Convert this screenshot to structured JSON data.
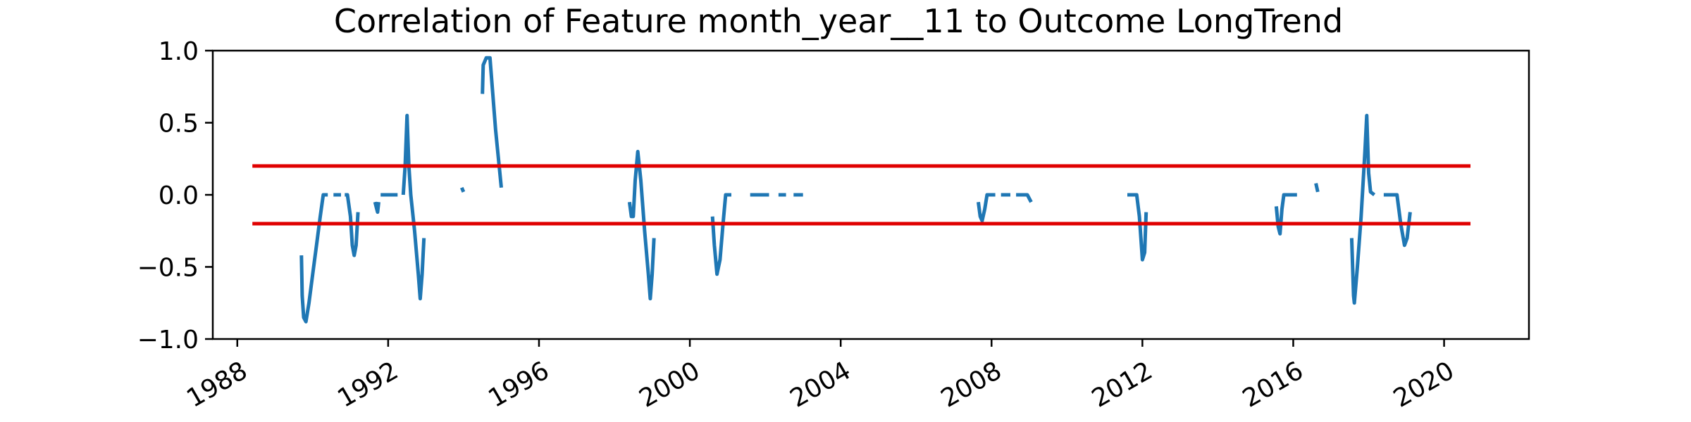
{
  "chart_data": {
    "type": "line",
    "title": "Correlation of Feature month_year__11 to Outcome LongTrend",
    "xlabel": "",
    "ylabel": "",
    "xlim": [
      1987.35,
      2022.25
    ],
    "ylim": [
      -1.0,
      1.0
    ],
    "x_ticks": [
      "1988",
      "1992",
      "1996",
      "2000",
      "2004",
      "2008",
      "2012",
      "2016",
      "2020"
    ],
    "y_ticks": [
      "1.0",
      "0.5",
      "0.0",
      "−0.5",
      "−1.0"
    ],
    "grid": false,
    "legend": "none",
    "series": [
      {
        "color": "#1f77b4",
        "segments": [
          [
            [
              1989.7,
              -0.42
            ],
            [
              1989.72,
              -0.7
            ],
            [
              1989.76,
              -0.85
            ],
            [
              1989.82,
              -0.88
            ],
            [
              1989.9,
              -0.75
            ],
            [
              1990.0,
              -0.55
            ],
            [
              1990.1,
              -0.35
            ],
            [
              1990.2,
              -0.15
            ],
            [
              1990.28,
              0.0
            ],
            [
              1990.4,
              0.0
            ]
          ],
          [
            [
              1990.55,
              0.0
            ],
            [
              1990.75,
              0.0
            ]
          ],
          [
            [
              1990.85,
              0.0
            ],
            [
              1990.92,
              0.0
            ],
            [
              1991.0,
              -0.15
            ],
            [
              1991.05,
              -0.35
            ],
            [
              1991.1,
              -0.42
            ],
            [
              1991.15,
              -0.35
            ],
            [
              1991.2,
              -0.12
            ]
          ],
          [
            [
              1991.65,
              -0.05
            ],
            [
              1991.7,
              -0.1
            ],
            [
              1991.72,
              -0.12
            ],
            [
              1991.75,
              -0.05
            ]
          ],
          [
            [
              1991.8,
              0.0
            ],
            [
              1992.25,
              0.0
            ]
          ],
          [
            [
              1992.4,
              0.0
            ],
            [
              1992.45,
              0.2
            ],
            [
              1992.5,
              0.55
            ],
            [
              1992.55,
              0.2
            ],
            [
              1992.6,
              0.0
            ],
            [
              1992.7,
              -0.25
            ],
            [
              1992.8,
              -0.55
            ],
            [
              1992.85,
              -0.72
            ],
            [
              1992.9,
              -0.55
            ],
            [
              1992.95,
              -0.3
            ]
          ],
          [
            [
              1993.95,
              0.05
            ],
            [
              1994.0,
              0.02
            ]
          ],
          [
            [
              1994.5,
              0.7
            ],
            [
              1994.52,
              0.9
            ],
            [
              1994.6,
              0.95
            ],
            [
              1994.7,
              0.95
            ],
            [
              1994.85,
              0.45
            ],
            [
              1995.0,
              0.05
            ]
          ],
          [
            [
              1998.4,
              -0.05
            ],
            [
              1998.45,
              -0.15
            ],
            [
              1998.5,
              -0.15
            ],
            [
              1998.55,
              0.1
            ],
            [
              1998.62,
              0.3
            ],
            [
              1998.7,
              0.1
            ],
            [
              1998.8,
              -0.25
            ],
            [
              1998.9,
              -0.55
            ],
            [
              1998.95,
              -0.72
            ],
            [
              1999.0,
              -0.55
            ],
            [
              1999.05,
              -0.3
            ]
          ],
          [
            [
              2000.6,
              -0.15
            ],
            [
              2000.65,
              -0.35
            ],
            [
              2000.72,
              -0.55
            ],
            [
              2000.8,
              -0.45
            ],
            [
              2000.88,
              -0.2
            ],
            [
              2000.95,
              0.0
            ],
            [
              2001.1,
              0.0
            ]
          ],
          [
            [
              2001.6,
              0.0
            ],
            [
              2002.1,
              0.0
            ]
          ],
          [
            [
              2002.35,
              0.0
            ],
            [
              2002.55,
              0.0
            ]
          ],
          [
            [
              2002.75,
              0.0
            ],
            [
              2003.0,
              0.0
            ]
          ],
          [
            [
              2007.65,
              -0.05
            ],
            [
              2007.7,
              -0.15
            ],
            [
              2007.75,
              -0.18
            ],
            [
              2007.82,
              -0.1
            ],
            [
              2007.88,
              0.0
            ],
            [
              2008.1,
              0.0
            ]
          ],
          [
            [
              2008.25,
              0.0
            ],
            [
              2008.5,
              0.0
            ]
          ],
          [
            [
              2008.65,
              0.0
            ],
            [
              2008.95,
              0.0
            ],
            [
              2009.05,
              -0.05
            ]
          ],
          [
            [
              2011.6,
              0.0
            ],
            [
              2011.85,
              0.0
            ],
            [
              2011.92,
              -0.15
            ],
            [
              2012.0,
              -0.45
            ],
            [
              2012.06,
              -0.4
            ],
            [
              2012.1,
              -0.12
            ]
          ],
          [
            [
              2015.55,
              -0.08
            ],
            [
              2015.6,
              -0.22
            ],
            [
              2015.65,
              -0.27
            ],
            [
              2015.7,
              -0.1
            ],
            [
              2015.75,
              0.0
            ],
            [
              2016.1,
              0.0
            ]
          ],
          [
            [
              2016.6,
              0.08
            ],
            [
              2016.65,
              0.02
            ]
          ],
          [
            [
              2017.55,
              -0.3
            ],
            [
              2017.6,
              -0.7
            ],
            [
              2017.62,
              -0.75
            ],
            [
              2017.7,
              -0.5
            ],
            [
              2017.8,
              -0.15
            ],
            [
              2017.9,
              0.3
            ],
            [
              2017.95,
              0.55
            ],
            [
              2018.0,
              0.15
            ],
            [
              2018.05,
              0.02
            ],
            [
              2018.15,
              0.0
            ]
          ],
          [
            [
              2018.4,
              0.0
            ],
            [
              2018.75,
              0.0
            ],
            [
              2018.85,
              -0.2
            ],
            [
              2018.95,
              -0.35
            ],
            [
              2019.02,
              -0.3
            ],
            [
              2019.1,
              -0.12
            ]
          ]
        ]
      }
    ],
    "threshold_lines": [
      {
        "y": 0.2,
        "x": [
          1988.4,
          2020.7
        ],
        "color": "#e00000"
      },
      {
        "y": -0.2,
        "x": [
          1988.4,
          2020.7
        ],
        "color": "#e00000"
      }
    ]
  }
}
